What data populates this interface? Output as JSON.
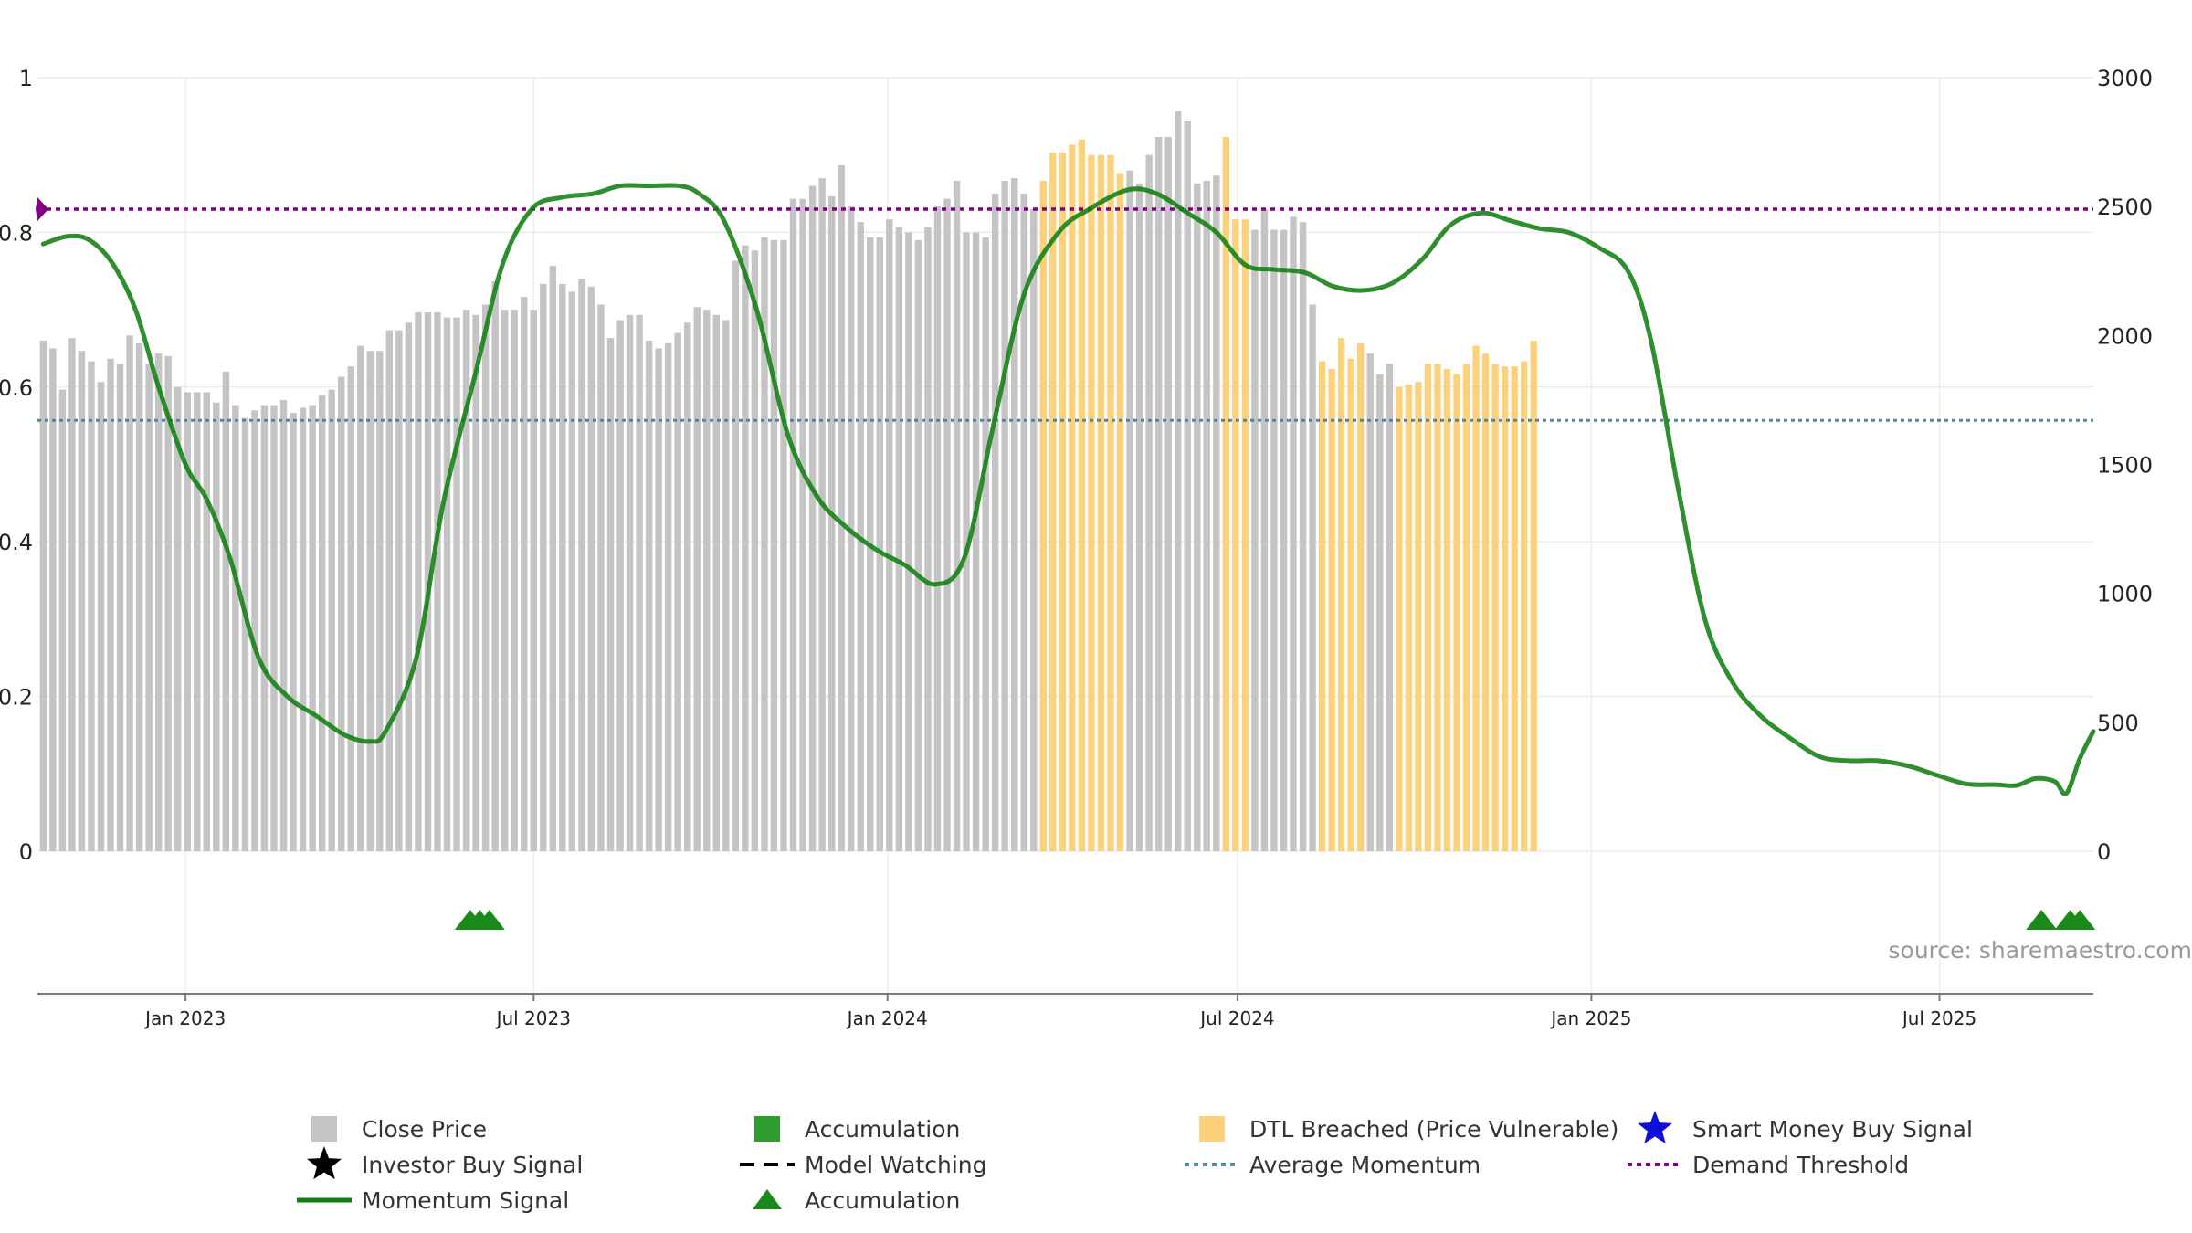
{
  "source_text": "source: sharemaestro.com",
  "chart_data": {
    "type": "bar",
    "x_range": [
      "2022-10-16",
      "2025-09-19"
    ],
    "left_axis": {
      "ylim": [
        0,
        1
      ],
      "ticks": [
        0,
        0.2,
        0.4,
        0.6,
        0.8,
        1
      ],
      "tick_labels": [
        "0",
        "0.2",
        "0.4",
        "0.6",
        "0.8",
        "1"
      ]
    },
    "right_axis": {
      "ylim": [
        0,
        3000
      ],
      "ticks": [
        0,
        500,
        1000,
        1500,
        2000,
        2500,
        3000
      ],
      "tick_labels": [
        "0",
        "500",
        "1000",
        "1500",
        "2000",
        "2500",
        "3000"
      ]
    },
    "x_ticks": [
      {
        "date": "2023-01-01",
        "label": "Jan 2023"
      },
      {
        "date": "2023-07-01",
        "label": "Jul 2023"
      },
      {
        "date": "2024-01-01",
        "label": "Jan 2024"
      },
      {
        "date": "2024-07-01",
        "label": "Jul 2024"
      },
      {
        "date": "2025-01-01",
        "label": "Jan 2025"
      },
      {
        "date": "2025-07-01",
        "label": "Jul 2025"
      }
    ],
    "grid": true,
    "colors": {
      "close": "#c4c4c4",
      "accumulation": "#2e9c2e",
      "dtl": "#fbd17c",
      "momentum": "#107f10",
      "average_momentum": "#4f86a6",
      "demand_threshold": "#800080",
      "marker": "#1a8a1a",
      "smart_money": "#1010dd"
    },
    "close_series": {
      "name": "Close Price",
      "start_date": "2022-10-19",
      "step_days": 5,
      "values": [
        1980,
        1950,
        1790,
        1990,
        1940,
        1900,
        1820,
        1910,
        1890,
        2000,
        1970,
        1890,
        1930,
        1920,
        1800,
        1780,
        1780,
        1780,
        1740,
        1860,
        1730,
        1680,
        1710,
        1730,
        1730,
        1750,
        1700,
        1720,
        1730,
        1770,
        1790,
        1840,
        1880,
        1960,
        1940,
        1940,
        2020,
        2020,
        2050,
        2090,
        2090,
        2090,
        2070,
        2070,
        2100,
        2080,
        2120,
        2210,
        2100,
        2100,
        2150,
        2100,
        2200,
        2270,
        2200,
        2170,
        2220,
        2190,
        2120,
        1990,
        2060,
        2080,
        2080,
        1980,
        1950,
        1970,
        2010,
        2050,
        2110,
        2100,
        2080,
        2060,
        2290,
        2350,
        2330,
        2380,
        2370,
        2370,
        2530,
        2530,
        2580,
        2610,
        2540,
        2660,
        2500,
        2440,
        2380,
        2380,
        2450,
        2420,
        2400,
        2370,
        2420,
        2500,
        2530,
        2600,
        2400,
        2400,
        2380,
        2550,
        2600,
        2610,
        2550,
        2490,
        2600,
        2710,
        2710,
        2740,
        2760,
        2700,
        2700,
        2700,
        2630,
        2640,
        2590,
        2700,
        2770,
        2770,
        2870,
        2830,
        2590,
        2600,
        2620,
        2770,
        2450,
        2450,
        2410,
        2490,
        2410,
        2410,
        2460,
        2440,
        2120,
        1900,
        1870,
        1990,
        1910,
        1970,
        1930,
        1850,
        1890,
        1800,
        1810,
        1820,
        1890,
        1890,
        1870,
        1850,
        1890,
        1960,
        1930,
        1890,
        1880,
        1880,
        1900,
        1980
      ],
      "accumulation_dates": [
        "2023-05-29",
        "2023-06-03",
        "2023-06-08",
        "2025-08-23",
        "2025-09-07",
        "2025-09-12"
      ],
      "dtl_ranges": [
        [
          "2024-03-22",
          "2024-05-02"
        ],
        [
          "2024-06-21",
          "2024-07-06"
        ],
        [
          "2024-08-10",
          "2024-09-05"
        ],
        [
          "2024-09-20",
          "2025-01-28"
        ]
      ],
      "gray_exceptions": [
        "2024-05-07",
        "2024-09-10",
        "2024-09-15"
      ]
    },
    "momentum_series": {
      "name": "Momentum Signal",
      "points": [
        [
          "2022-10-19",
          0.785
        ],
        [
          "2022-11-01",
          0.795
        ],
        [
          "2022-11-12",
          0.79
        ],
        [
          "2022-11-24",
          0.76
        ],
        [
          "2022-12-06",
          0.7
        ],
        [
          "2022-12-18",
          0.6
        ],
        [
          "2023-01-01",
          0.5
        ],
        [
          "2023-01-12",
          0.455
        ],
        [
          "2023-01-24",
          0.38
        ],
        [
          "2023-02-08",
          0.25
        ],
        [
          "2023-02-23",
          0.2
        ],
        [
          "2023-03-10",
          0.175
        ],
        [
          "2023-03-25",
          0.15
        ],
        [
          "2023-04-07",
          0.142
        ],
        [
          "2023-04-15",
          0.155
        ],
        [
          "2023-05-01",
          0.25
        ],
        [
          "2023-05-15",
          0.45
        ],
        [
          "2023-06-01",
          0.62
        ],
        [
          "2023-06-15",
          0.76
        ],
        [
          "2023-06-30",
          0.83
        ],
        [
          "2023-07-15",
          0.845
        ],
        [
          "2023-08-01",
          0.85
        ],
        [
          "2023-08-15",
          0.86
        ],
        [
          "2023-08-30",
          0.86
        ],
        [
          "2023-09-15",
          0.86
        ],
        [
          "2023-09-25",
          0.85
        ],
        [
          "2023-10-08",
          0.815
        ],
        [
          "2023-10-25",
          0.7
        ],
        [
          "2023-11-10",
          0.54
        ],
        [
          "2023-11-25",
          0.46
        ],
        [
          "2023-12-10",
          0.42
        ],
        [
          "2023-12-26",
          0.39
        ],
        [
          "2024-01-10",
          0.37
        ],
        [
          "2024-01-26",
          0.345
        ],
        [
          "2024-02-10",
          0.38
        ],
        [
          "2024-02-25",
          0.55
        ],
        [
          "2024-03-12",
          0.72
        ],
        [
          "2024-03-30",
          0.8
        ],
        [
          "2024-04-15",
          0.83
        ],
        [
          "2024-05-05",
          0.855
        ],
        [
          "2024-05-20",
          0.85
        ],
        [
          "2024-06-05",
          0.825
        ],
        [
          "2024-06-20",
          0.8
        ],
        [
          "2024-07-05",
          0.758
        ],
        [
          "2024-07-20",
          0.752
        ],
        [
          "2024-08-05",
          0.748
        ],
        [
          "2024-08-20",
          0.73
        ],
        [
          "2024-09-05",
          0.725
        ],
        [
          "2024-09-20",
          0.735
        ],
        [
          "2024-10-05",
          0.765
        ],
        [
          "2024-10-20",
          0.81
        ],
        [
          "2024-11-05",
          0.825
        ],
        [
          "2024-11-20",
          0.815
        ],
        [
          "2024-12-05",
          0.805
        ],
        [
          "2024-12-20",
          0.8
        ],
        [
          "2025-01-05",
          0.78
        ],
        [
          "2025-01-20",
          0.75
        ],
        [
          "2025-02-01",
          0.66
        ],
        [
          "2025-02-15",
          0.47
        ],
        [
          "2025-03-01",
          0.3
        ],
        [
          "2025-03-15",
          0.22
        ],
        [
          "2025-03-30",
          0.175
        ],
        [
          "2025-04-15",
          0.145
        ],
        [
          "2025-04-30",
          0.122
        ],
        [
          "2025-05-15",
          0.117
        ],
        [
          "2025-05-30",
          0.117
        ],
        [
          "2025-06-15",
          0.11
        ],
        [
          "2025-06-30",
          0.098
        ],
        [
          "2025-07-15",
          0.087
        ],
        [
          "2025-07-30",
          0.086
        ],
        [
          "2025-08-10",
          0.085
        ],
        [
          "2025-08-20",
          0.094
        ],
        [
          "2025-08-30",
          0.09
        ],
        [
          "2025-09-05",
          0.075
        ],
        [
          "2025-09-12",
          0.12
        ],
        [
          "2025-09-19",
          0.155
        ]
      ]
    },
    "average_momentum": {
      "name": "Average Momentum",
      "value": 0.557
    },
    "demand_threshold": {
      "name": "Demand Threshold",
      "value": 0.83
    },
    "accumulation_markers": {
      "name": "Accumulation",
      "dates": [
        "2023-05-29",
        "2023-06-03",
        "2023-06-08",
        "2025-08-23",
        "2025-09-07",
        "2025-09-12"
      ]
    },
    "legend": [
      {
        "key": "close",
        "label": "Close Price",
        "symbol": "square",
        "color": "#c4c4c4"
      },
      {
        "key": "accumulation_bar",
        "label": "Accumulation",
        "symbol": "square",
        "color": "#2e9c2e"
      },
      {
        "key": "dtl",
        "label": "DTL Breached (Price Vulnerable)",
        "symbol": "square",
        "color": "#fbd17c"
      },
      {
        "key": "smart_money",
        "label": "Smart Money Buy Signal",
        "symbol": "star",
        "color": "#1010dd"
      },
      {
        "key": "investor_buy",
        "label": "Investor Buy Signal",
        "symbol": "star",
        "color": "#000000"
      },
      {
        "key": "model_watching",
        "label": "Model Watching",
        "symbol": "dash",
        "color": "#000000"
      },
      {
        "key": "avg_momentum",
        "label": "Average Momentum",
        "symbol": "dot-line",
        "color": "#4f86a6"
      },
      {
        "key": "demand",
        "label": "Demand Threshold",
        "symbol": "dot-line",
        "color": "#800080"
      },
      {
        "key": "momentum",
        "label": "Momentum Signal",
        "symbol": "line",
        "color": "#107f10"
      },
      {
        "key": "accumulation_marker",
        "label": "Accumulation",
        "symbol": "triangle",
        "color": "#1a8a1a"
      }
    ]
  }
}
